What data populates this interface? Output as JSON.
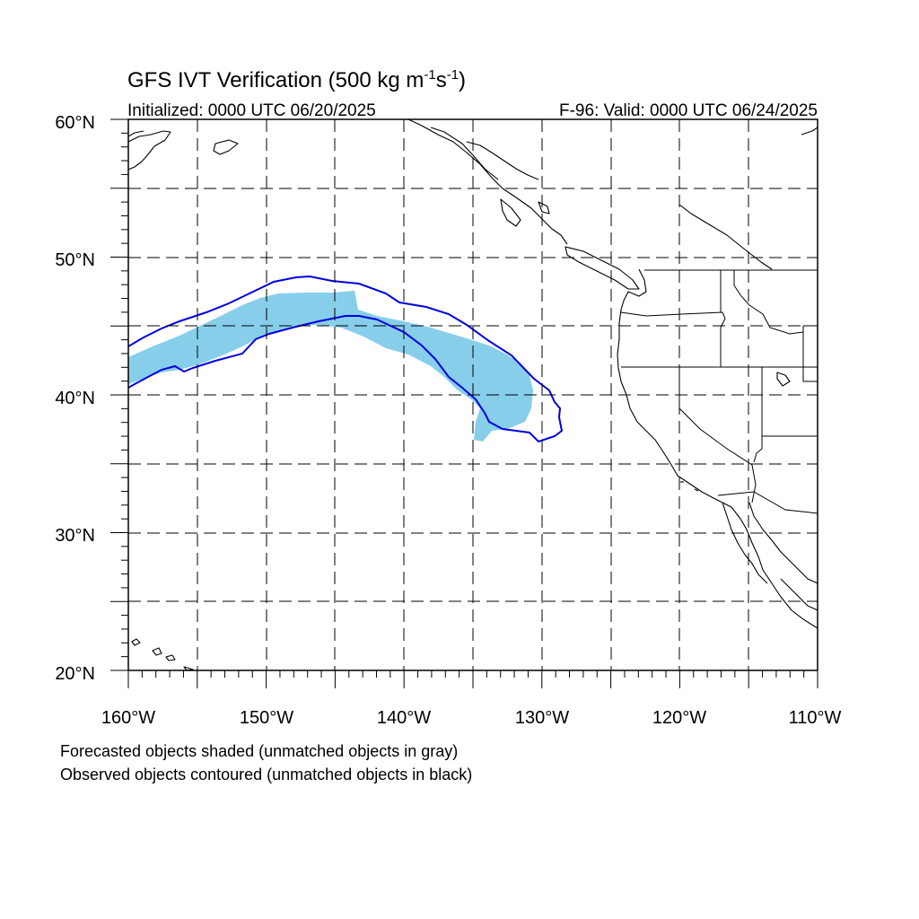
{
  "title": {
    "main": "GFS IVT Verification (500 kg m",
    "sup1": "-1",
    "mid": "s",
    "sup2": "-1",
    "end": ")"
  },
  "initialized": "Initialized: 0000 UTC 06/20/2025",
  "valid": "F-96: Valid: 0000 UTC 06/24/2025",
  "lat_labels": [
    "60°N",
    "50°N",
    "40°N",
    "30°N",
    "20°N"
  ],
  "lon_labels": [
    "160°W",
    "150°W",
    "140°W",
    "130°W",
    "120°W",
    "110°W"
  ],
  "footnotes": [
    "Forecasted objects shaded (unmatched objects in gray)",
    "Observed objects contoured (unmatched objects in black)"
  ],
  "colors": {
    "forecast_fill": "#87ceeb",
    "observed_contour": "#0000e0",
    "map_lines": "#000000"
  },
  "map_extent": {
    "lon": [
      -160,
      -110
    ],
    "lat": [
      20,
      60
    ]
  }
}
